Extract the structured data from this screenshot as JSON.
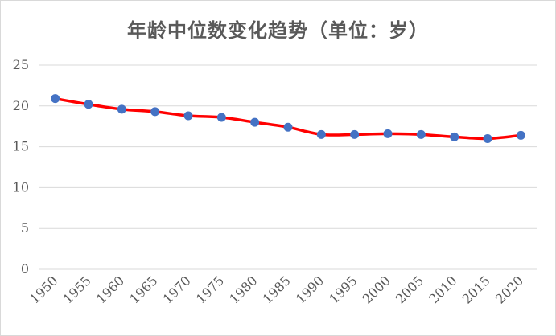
{
  "chart_data": {
    "type": "line",
    "title": "年龄中位数变化趋势（单位：岁）",
    "xlabel": "",
    "ylabel": "",
    "x": [
      "1950",
      "1955",
      "1960",
      "1965",
      "1970",
      "1975",
      "1980",
      "1985",
      "1990",
      "1995",
      "2000",
      "2005",
      "2010",
      "2015",
      "2020"
    ],
    "series": [
      {
        "values": [
          20.9,
          20.2,
          19.6,
          19.3,
          18.8,
          18.6,
          18.0,
          17.4,
          16.5,
          16.5,
          16.6,
          16.5,
          16.2,
          16.0,
          16.4
        ]
      }
    ],
    "ylim": [
      0,
      25
    ],
    "yticks": [
      "0",
      "5",
      "10",
      "15",
      "20",
      "25"
    ],
    "grid": true,
    "legend": "none",
    "colors": {
      "line": "#ff0000",
      "marker": "#4472c4",
      "grid": "#d9d9d9",
      "text": "#595959"
    }
  }
}
